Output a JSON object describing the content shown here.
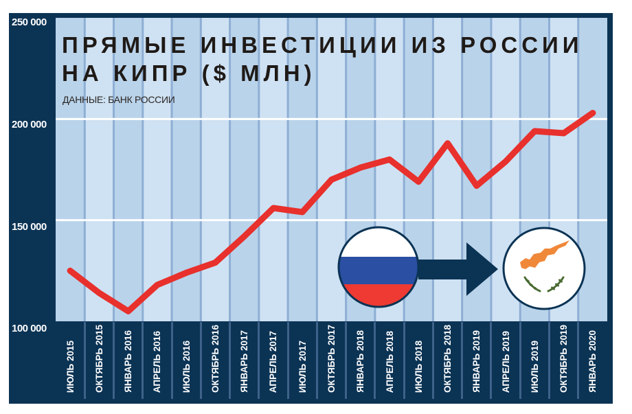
{
  "chart": {
    "title_line1": "ПРЯМЫЕ ИНВЕСТИЦИИ ИЗ РОССИИ",
    "title_line2": "НА КИПР ($ МЛН)",
    "source": "ДАННЫЕ: БАНК РОССИИ",
    "y_ticks": [
      "250 000",
      "200 000",
      "150 000",
      "100 000"
    ],
    "colors": {
      "frame": "#0b3354",
      "column_dark": "#b9d3ea",
      "column_light": "#cfe2f3",
      "column_divider": "#8eaed4",
      "gridline": "#ffffff",
      "line": "#e8302c",
      "russia_white": "#ffffff",
      "russia_blue": "#2a4fa3",
      "russia_red": "#ee3a33",
      "cyprus_copper": "#f0883a",
      "cyprus_olive": "#4a6b33",
      "arrow": "#0b3354"
    },
    "flags": {
      "from": "russia-flag",
      "to": "cyprus-flag"
    }
  },
  "chart_data": {
    "type": "line",
    "title": "ПРЯМЫЕ ИНВЕСТИЦИИ ИЗ РОССИИ НА КИПР ($ МЛН)",
    "subtitle": "ДАННЫЕ: БАНК РОССИИ",
    "xlabel": "",
    "ylabel": "",
    "ylim": [
      100000,
      250000
    ],
    "y_ticks": [
      100000,
      150000,
      200000,
      250000
    ],
    "grid": {
      "horizontal": true,
      "vertical_bands": true
    },
    "legend": null,
    "categories": [
      "ИЮЛЬ 2015",
      "ОКТЯБРЬ 2015",
      "ЯНВАРЬ 2016",
      "АПРЕЛЬ 2016",
      "ИЮЛЬ 2016",
      "ОКТЯБРЬ 2016",
      "ЯНВАРЬ 2017",
      "АПРЕЛЬ 2017",
      "ИЮЛЬ 2017",
      "ОКТЯБРЬ 2017",
      "ЯНВАРЬ 2018",
      "АПРЕЛЬ 2018",
      "ИЮЛЬ 2018",
      "ОКТЯБРЬ 2018",
      "ЯНВАРЬ 2019",
      "АПРЕЛЬ 2019",
      "ИЮЛЬ 2019",
      "ОКТЯБРЬ 2019",
      "ЯНВАРЬ 2020"
    ],
    "series": [
      {
        "name": "Прямые инвестиции из России на Кипр ($ млн)",
        "values": [
          125000,
          114000,
          105000,
          118000,
          124000,
          129000,
          142000,
          156000,
          154000,
          170000,
          176000,
          180000,
          169000,
          188000,
          167000,
          179000,
          194000,
          193000,
          203000
        ]
      }
    ]
  }
}
